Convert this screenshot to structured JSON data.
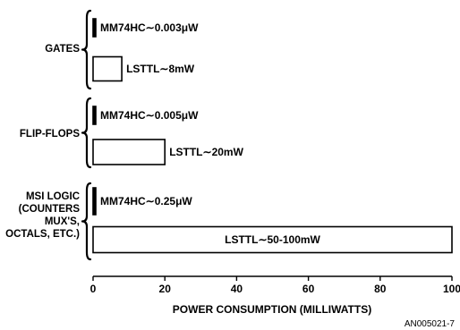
{
  "chart_data": {
    "type": "bar",
    "orientation": "horizontal",
    "title": "",
    "xlabel": "POWER CONSUMPTION (MILLIWATTS)",
    "ylabel": "",
    "xlim": [
      0,
      100
    ],
    "x_ticks": [
      "0",
      "20",
      "40",
      "60",
      "80",
      "100"
    ],
    "grid": false,
    "groups": [
      {
        "label_lines": [
          "GATES"
        ],
        "bars": [
          {
            "label": "MM74HC∼0.003μW",
            "value": 3e-06
          },
          {
            "label": "LSTTL∼8mW",
            "value": 8
          }
        ]
      },
      {
        "label_lines": [
          "FLIP-FLOPS"
        ],
        "bars": [
          {
            "label": "MM74HC∼0.005μW",
            "value": 5e-06
          },
          {
            "label": "LSTTL∼20mW",
            "value": 20
          }
        ]
      },
      {
        "label_lines": [
          "MSI LOGIC",
          "(COUNTERS",
          "MUX'S,",
          "OCTALS, ETC.)"
        ],
        "bars": [
          {
            "label": "MM74HC∼0.25μW",
            "value": 0.00025
          },
          {
            "label": "LSTTL∼50-100mW",
            "value": 100
          }
        ]
      }
    ]
  },
  "footer": {
    "code": "AN005021-7"
  }
}
